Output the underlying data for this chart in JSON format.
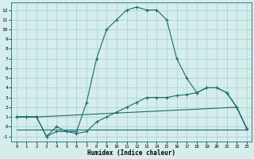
{
  "xlabel": "Humidex (Indice chaleur)",
  "xlim": [
    -0.5,
    23.5
  ],
  "ylim": [
    -1.5,
    12.8
  ],
  "xticks": [
    0,
    1,
    2,
    3,
    4,
    5,
    6,
    7,
    8,
    9,
    10,
    11,
    12,
    13,
    14,
    15,
    16,
    17,
    18,
    19,
    20,
    21,
    22,
    23
  ],
  "yticks": [
    -1,
    0,
    1,
    2,
    3,
    4,
    5,
    6,
    7,
    8,
    9,
    10,
    11,
    12
  ],
  "background_color": "#d5eded",
  "grid_color": "#a8cccc",
  "line_color": "#1a6b6b",
  "series": [
    {
      "x": [
        0,
        1,
        2,
        3,
        4,
        5,
        6,
        7,
        8,
        9,
        10,
        11,
        12,
        13,
        14,
        15,
        16,
        17,
        18,
        19,
        20,
        21,
        22,
        23
      ],
      "y": [
        1,
        1,
        1,
        -1,
        0,
        -0.5,
        -0.5,
        2.5,
        7,
        10,
        11,
        12,
        12.3,
        12,
        12,
        11,
        7,
        5,
        3.5,
        4,
        4,
        3.5,
        2,
        -0.2
      ],
      "marker": true
    },
    {
      "x": [
        0,
        1,
        2,
        3,
        4,
        5,
        6,
        7,
        8,
        9,
        10,
        11,
        12,
        13,
        14,
        15,
        16,
        17,
        18,
        19,
        20,
        21,
        22,
        23
      ],
      "y": [
        1,
        1,
        1,
        -1,
        -0.5,
        -0.5,
        -0.7,
        -0.5,
        0.5,
        1,
        1.5,
        2,
        2.5,
        3,
        3,
        3,
        3.2,
        3.3,
        3.5,
        4,
        4,
        3.5,
        2,
        -0.2
      ],
      "marker": true
    },
    {
      "x": [
        0,
        1,
        2,
        22,
        23
      ],
      "y": [
        1,
        1,
        1,
        2,
        -0.2
      ],
      "marker": false
    },
    {
      "x": [
        0,
        5,
        23
      ],
      "y": [
        -0.3,
        -0.3,
        -0.3
      ],
      "marker": false
    }
  ]
}
